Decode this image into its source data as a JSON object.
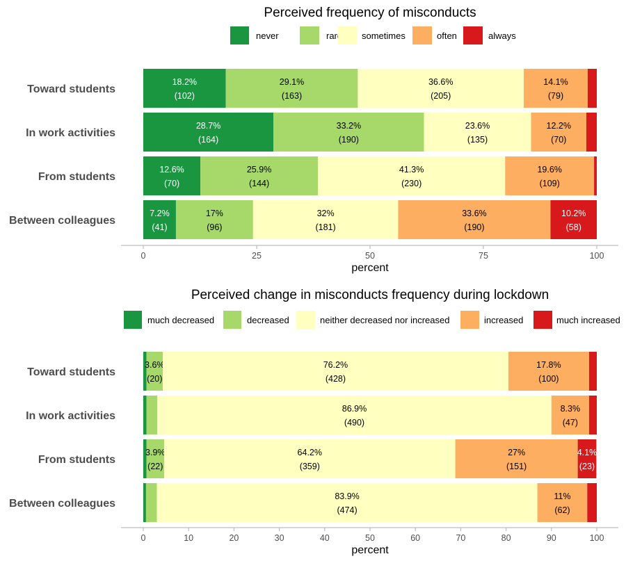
{
  "chart_data": [
    {
      "type": "bar",
      "orientation": "horizontal",
      "stacked": true,
      "title": "Perceived frequency of misconducts",
      "xlabel": "percent",
      "ylabel": "",
      "xlim": [
        0,
        100
      ],
      "xticks": [
        0,
        25,
        50,
        75,
        100
      ],
      "grid": false,
      "legend_position": "top",
      "categories": [
        "Toward students",
        "In work activities",
        "From students",
        "Between colleagues"
      ],
      "series": [
        {
          "name": "never",
          "color": "#1a9641",
          "values": [
            18.2,
            28.7,
            12.6,
            7.2
          ],
          "labels": [
            "18.2%",
            "28.7%",
            "12.6%",
            "7.2%"
          ],
          "counts": [
            "(102)",
            "(164)",
            "(70)",
            "(41)"
          ],
          "label_color": "#ffffff"
        },
        {
          "name": "rarely",
          "color": "#a6d96a",
          "values": [
            29.1,
            33.2,
            25.9,
            17.0
          ],
          "labels": [
            "29.1%",
            "33.2%",
            "25.9%",
            "17%"
          ],
          "counts": [
            "(163)",
            "(190)",
            "(144)",
            "(96)"
          ],
          "label_color": "#000000"
        },
        {
          "name": "sometimes",
          "color": "#ffffbf",
          "values": [
            36.6,
            23.6,
            41.3,
            32.0
          ],
          "labels": [
            "36.6%",
            "23.6%",
            "41.3%",
            "32%"
          ],
          "counts": [
            "(205)",
            "(135)",
            "(230)",
            "(181)"
          ],
          "label_color": "#000000"
        },
        {
          "name": "often",
          "color": "#fdae61",
          "values": [
            14.1,
            12.2,
            19.6,
            33.6
          ],
          "labels": [
            "14.1%",
            "12.2%",
            "19.6%",
            "33.6%"
          ],
          "counts": [
            "(79)",
            "(70)",
            "(109)",
            "(190)"
          ],
          "label_color": "#000000"
        },
        {
          "name": "always",
          "color": "#d7191c",
          "values": [
            2.0,
            2.3,
            0.6,
            10.2
          ],
          "labels": [
            "",
            "",
            "",
            "10.2%"
          ],
          "counts": [
            "",
            "",
            "",
            "(58)"
          ],
          "label_color": "#ffffff"
        }
      ]
    },
    {
      "type": "bar",
      "orientation": "horizontal",
      "stacked": true,
      "title": "Perceived change in misconducts frequency during lockdown",
      "xlabel": "percent",
      "ylabel": "",
      "xlim": [
        0,
        100
      ],
      "xticks": [
        0,
        10,
        20,
        30,
        40,
        50,
        60,
        70,
        80,
        90,
        100
      ],
      "grid": false,
      "legend_position": "top",
      "categories": [
        "Toward students",
        "In work activities",
        "From students",
        "Between colleagues"
      ],
      "series": [
        {
          "name": "much decreased",
          "color": "#1a9641",
          "values": [
            0.7,
            0.7,
            0.7,
            0.6
          ],
          "labels": [
            "",
            "",
            "",
            ""
          ],
          "counts": [
            "",
            "",
            "",
            ""
          ],
          "label_color": "#ffffff"
        },
        {
          "name": "decreased",
          "color": "#a6d96a",
          "values": [
            3.6,
            2.4,
            3.9,
            2.4
          ],
          "labels": [
            "3.6%",
            "",
            "3.9%",
            ""
          ],
          "counts": [
            "(20)",
            "",
            "(22)",
            ""
          ],
          "label_color": "#000000"
        },
        {
          "name": "neither decreased nor increased",
          "color": "#ffffbf",
          "values": [
            76.2,
            86.9,
            64.2,
            83.9
          ],
          "labels": [
            "76.2%",
            "86.9%",
            "64.2%",
            "83.9%"
          ],
          "counts": [
            "(428)",
            "(490)",
            "(359)",
            "(474)"
          ],
          "label_color": "#000000"
        },
        {
          "name": "increased",
          "color": "#fdae61",
          "values": [
            17.8,
            8.3,
            27.0,
            11.0
          ],
          "labels": [
            "17.8%",
            "8.3%",
            "27%",
            "11%"
          ],
          "counts": [
            "(100)",
            "(47)",
            "(151)",
            "(62)"
          ],
          "label_color": "#000000"
        },
        {
          "name": "much increased",
          "color": "#d7191c",
          "values": [
            1.7,
            1.7,
            4.1,
            2.1
          ],
          "labels": [
            "",
            "",
            "4.1%",
            ""
          ],
          "counts": [
            "",
            "",
            "(23)",
            ""
          ],
          "label_color": "#ffffff"
        }
      ]
    }
  ]
}
